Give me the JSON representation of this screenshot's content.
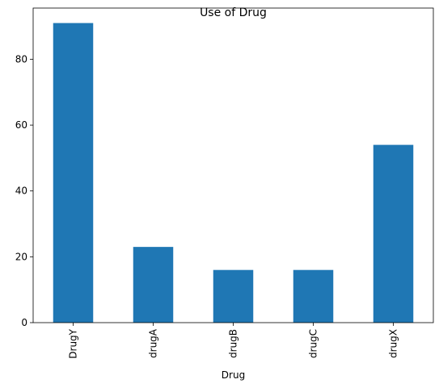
{
  "chart_data": {
    "type": "bar",
    "title": "Use of Drug",
    "xlabel": "Drug",
    "ylabel": "",
    "categories": [
      "DrugY",
      "drugA",
      "drugB",
      "drugC",
      "drugX"
    ],
    "values": [
      91,
      23,
      16,
      16,
      54
    ],
    "ylim": [
      0,
      95.55
    ],
    "yticks": [
      0,
      20,
      40,
      60,
      80
    ],
    "bar_color": "#1f77b4",
    "grid": false,
    "legend": "none"
  }
}
